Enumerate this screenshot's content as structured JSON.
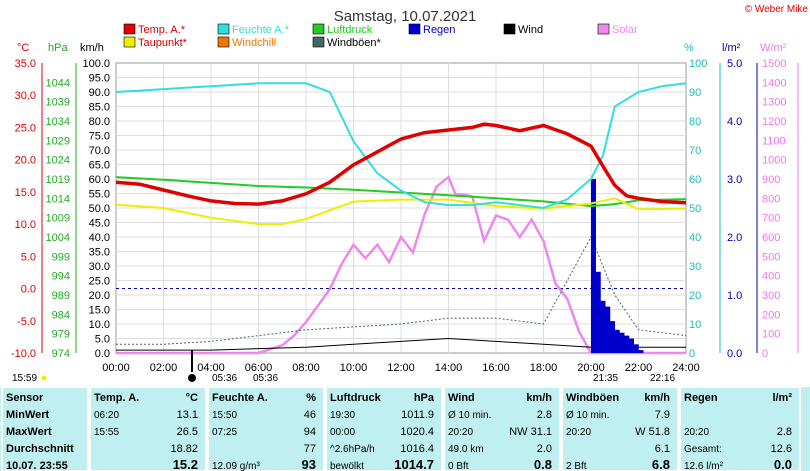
{
  "title": "Samstag, 10.07.2021",
  "credit": "© Weber Mike",
  "units_left": {
    "temp": "°C",
    "pressure": "hPa",
    "wind": "km/h"
  },
  "units_right": {
    "humidity": "%",
    "rain": "l/m²",
    "solar": "W/m²"
  },
  "legend": [
    {
      "label": "Temp. A.*",
      "color": "#e00000"
    },
    {
      "label": "Feuchte A.*",
      "color": "#33dddd"
    },
    {
      "label": "Luftdruck",
      "color": "#22cc22"
    },
    {
      "label": "Regen",
      "color": "#0000cc"
    },
    {
      "label": "Wind",
      "color": "#000000"
    },
    {
      "label": "Solar",
      "color": "#ee88ee"
    },
    {
      "label": "Taupunkt*",
      "color": "#eeee00"
    },
    {
      "label": "Windchill",
      "color": "#ee7700"
    },
    {
      "label": "Windböen*",
      "color": "#446666"
    }
  ],
  "axes": {
    "x_ticks": [
      "00:00",
      "02:00",
      "04:00",
      "06:00",
      "08:00",
      "10:00",
      "12:00",
      "14:00",
      "16:00",
      "18:00",
      "20:00",
      "22:00",
      "24:00"
    ],
    "temp_ticks": [
      "35.0",
      "30.0",
      "25.0",
      "20.0",
      "15.0",
      "10.0",
      "5.0",
      "0.0",
      "-5.0",
      "-10.0"
    ],
    "pressure_ticks": [
      "1044",
      "1039",
      "1034",
      "1029",
      "1024",
      "1019",
      "1014",
      "1009",
      "1004",
      "999",
      "994",
      "989",
      "984",
      "979",
      "974"
    ],
    "wind_ticks": [
      "100.0",
      "95.0",
      "90.0",
      "85.0",
      "80.0",
      "75.0",
      "70.0",
      "65.0",
      "60.0",
      "55.0",
      "50.0",
      "45.0",
      "40.0",
      "35.0",
      "30.0",
      "25.0",
      "20.0",
      "15.0",
      "10.0",
      "5.0",
      "0.0"
    ],
    "humidity_ticks": [
      "100",
      "90",
      "80",
      "70",
      "60",
      "50",
      "40",
      "30",
      "20",
      "10",
      "0"
    ],
    "rain_ticks": [
      "5.0",
      "4.0",
      "3.0",
      "2.0",
      "1.0",
      "0.0"
    ],
    "solar_ticks": [
      "1500",
      "1400",
      "1300",
      "1200",
      "1100",
      "1000",
      "900",
      "800",
      "700",
      "600",
      "500",
      "400",
      "300",
      "200",
      "100",
      "0"
    ]
  },
  "sun": {
    "rise_label": "05:36",
    "set_label": "21:35",
    "civil_rise": "05:36",
    "civil_set": "22:16",
    "now": "15:59"
  },
  "chart_data": {
    "type": "line",
    "x_unit": "hour of day",
    "series": [
      {
        "name": "Temp. A.*",
        "axis": "temp °C",
        "x": [
          0,
          1,
          2,
          3,
          4,
          5,
          6,
          7,
          8,
          9,
          10,
          11,
          12,
          13,
          14,
          15,
          15.5,
          16,
          17,
          18,
          19,
          20,
          20.5,
          21,
          21.5,
          22,
          23,
          24
        ],
        "values": [
          16.5,
          16.2,
          15.3,
          14.4,
          13.6,
          13.2,
          13.1,
          13.6,
          14.7,
          16.5,
          19.2,
          21.2,
          23.2,
          24.2,
          24.6,
          25.0,
          25.5,
          25.3,
          24.5,
          25.3,
          24.0,
          22.1,
          19.0,
          16.0,
          14.4,
          14.0,
          13.5,
          13.3
        ]
      },
      {
        "name": "Feuchte A.*",
        "axis": "humidity %",
        "x": [
          0,
          1,
          2,
          3,
          4,
          5,
          6,
          7,
          8,
          9,
          10,
          11,
          12,
          13,
          14,
          15,
          16,
          17,
          18,
          19,
          20,
          20.5,
          21,
          22,
          23,
          24
        ],
        "values": [
          90,
          90.5,
          91,
          91.5,
          92,
          92.5,
          93,
          93,
          93,
          90,
          73,
          62,
          56,
          52,
          51,
          51,
          52,
          51,
          50,
          53,
          60,
          68,
          85,
          90,
          92,
          93
        ]
      },
      {
        "name": "Luftdruck",
        "axis": "pressure hPa",
        "x": [
          0,
          2,
          4,
          6,
          8,
          10,
          12,
          14,
          16,
          18,
          20,
          21,
          22,
          24
        ],
        "values": [
          1019.5,
          1018.8,
          1018,
          1017.2,
          1016.8,
          1016.2,
          1015.5,
          1014.8,
          1014,
          1013.2,
          1012,
          1012.5,
          1013.5,
          1013.8
        ]
      },
      {
        "name": "Taupunkt*",
        "axis": "temp °C",
        "x": [
          0,
          2,
          4,
          6,
          7,
          8,
          10,
          12,
          14,
          16,
          18,
          20,
          21,
          22,
          24
        ],
        "values": [
          13.0,
          12.5,
          11.0,
          10.0,
          10.0,
          10.8,
          13.5,
          13.8,
          13.8,
          12.8,
          12.4,
          13.2,
          14.0,
          12.3,
          12.4
        ]
      },
      {
        "name": "Solar",
        "axis": "solar W/m²",
        "x": [
          0,
          6,
          7,
          7.5,
          8,
          9,
          9.5,
          10,
          10.5,
          11,
          11.5,
          12,
          12.5,
          13,
          13.5,
          14,
          14.3,
          14.6,
          15,
          15.5,
          16,
          16.5,
          17,
          17.5,
          18,
          18.5,
          19,
          19.5,
          20,
          24
        ],
        "values": [
          0,
          0,
          40,
          90,
          160,
          330,
          460,
          560,
          490,
          560,
          470,
          600,
          520,
          720,
          860,
          910,
          820,
          820,
          810,
          580,
          710,
          690,
          600,
          690,
          580,
          360,
          280,
          110,
          0,
          0
        ]
      },
      {
        "name": "Regen",
        "axis": "rain l/m²",
        "x": [
          20.0,
          20.2,
          20.4,
          20.6,
          20.8,
          21.0,
          21.2,
          21.4,
          21.6,
          21.8,
          22.0
        ],
        "values": [
          3.0,
          1.4,
          0.9,
          0.8,
          0.55,
          0.4,
          0.35,
          0.3,
          0.25,
          0.15,
          0.05
        ]
      },
      {
        "name": "Wind",
        "axis": "wind km/h",
        "x": [
          0,
          2,
          4,
          6,
          8,
          10,
          12,
          14,
          16,
          18,
          20,
          22,
          24
        ],
        "values": [
          1,
          1,
          1,
          1.5,
          2,
          3,
          4,
          5,
          4,
          3,
          2,
          2,
          2
        ]
      },
      {
        "name": "Windböen*",
        "axis": "wind km/h",
        "x": [
          0,
          2,
          4,
          6,
          8,
          10,
          12,
          14,
          16,
          18,
          20,
          21,
          22,
          24
        ],
        "values": [
          3,
          3,
          4,
          6,
          8,
          9,
          10,
          12,
          12,
          10,
          40,
          20,
          8,
          6
        ]
      }
    ]
  },
  "table": {
    "headers": [
      "Sensor",
      "Temp. A.",
      "°C",
      "Feuchte A.",
      "%",
      "Luftdruck",
      "hPa",
      "Wind",
      "km/h",
      "Windböen",
      "km/h",
      "Regen",
      "l/m²"
    ],
    "rows": [
      {
        "label": "MinWert",
        "cells": [
          "06:20",
          "13.1",
          "15:50",
          "46",
          "19:30",
          "1011.9",
          "Ø 10 min.",
          "2.8",
          "Ø 10 min.",
          "7.9",
          "",
          ""
        ]
      },
      {
        "label": "MaxWert",
        "cells": [
          "15:55",
          "26.5",
          "07:25",
          "94",
          "00:00",
          "1020.4",
          "20:20",
          "NW 31.1",
          "20:20",
          "W 51.8",
          "20:20",
          "2.8"
        ]
      },
      {
        "label": "Durchschnitt",
        "cells": [
          "",
          "18.82",
          "",
          "77",
          "^2.6hPa/h",
          "1016.4",
          "49.0 km",
          "2.0",
          "",
          "6.1",
          "Gesamt:",
          "12.6"
        ]
      },
      {
        "label": "10.07. 23:55",
        "cells": [
          "",
          "15.2",
          "12.09 g/m³",
          "93",
          "bewölkt",
          "1014.7",
          "0 Bft",
          "0.8",
          "2 Bft",
          "6.8",
          "12.6 l/m²",
          "0.0"
        ]
      }
    ]
  }
}
